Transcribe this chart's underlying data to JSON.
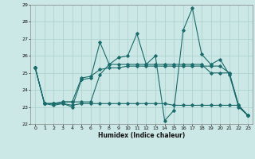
{
  "xlabel": "Humidex (Indice chaleur)",
  "background_color": "#cce8e6",
  "grid_color": "#aacfcc",
  "line_color": "#1a6b6b",
  "xlim": [
    -0.5,
    23.5
  ],
  "ylim": [
    22,
    29
  ],
  "yticks": [
    22,
    23,
    24,
    25,
    26,
    27,
    28,
    29
  ],
  "xticks": [
    0,
    1,
    2,
    3,
    4,
    5,
    6,
    7,
    8,
    9,
    10,
    11,
    12,
    13,
    14,
    15,
    16,
    17,
    18,
    19,
    20,
    21,
    22,
    23
  ],
  "series": [
    [
      25.3,
      23.2,
      23.1,
      23.2,
      23.0,
      24.6,
      24.7,
      26.8,
      25.5,
      25.9,
      26.0,
      27.3,
      25.5,
      26.0,
      22.2,
      22.8,
      27.5,
      28.8,
      26.1,
      25.5,
      25.8,
      24.9,
      23.0,
      22.5
    ],
    [
      25.3,
      23.2,
      23.2,
      23.3,
      23.3,
      24.7,
      24.8,
      25.2,
      25.3,
      25.3,
      25.4,
      25.4,
      25.4,
      25.4,
      25.4,
      25.4,
      25.4,
      25.4,
      25.4,
      25.4,
      25.4,
      25.0,
      23.1,
      22.5
    ],
    [
      25.3,
      23.2,
      23.2,
      23.2,
      23.1,
      23.2,
      23.2,
      23.2,
      23.2,
      23.2,
      23.2,
      23.2,
      23.2,
      23.2,
      23.2,
      23.1,
      23.1,
      23.1,
      23.1,
      23.1,
      23.1,
      23.1,
      23.1,
      22.5
    ],
    [
      25.3,
      23.2,
      23.2,
      23.3,
      23.3,
      23.3,
      23.3,
      24.9,
      25.5,
      25.5,
      25.5,
      25.5,
      25.5,
      25.5,
      25.5,
      25.5,
      25.5,
      25.5,
      25.5,
      25.0,
      25.0,
      25.0,
      23.1,
      22.5
    ]
  ]
}
